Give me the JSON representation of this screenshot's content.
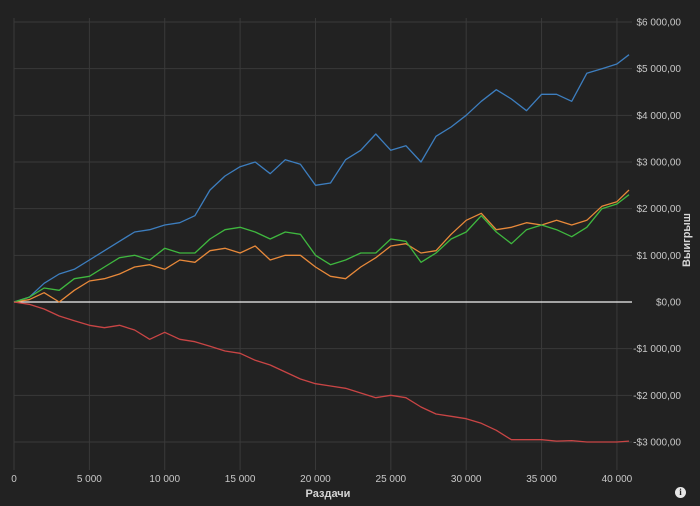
{
  "chart_data": {
    "type": "line",
    "xlabel": "Раздачи",
    "ylabel": "Выигрыш",
    "xlim": [
      0,
      41000
    ],
    "ylim": [
      -3600,
      6000
    ],
    "x_ticks": [
      0,
      5000,
      10000,
      15000,
      20000,
      25000,
      30000,
      35000,
      40000
    ],
    "x_tick_labels": [
      "0",
      "5 000",
      "10 000",
      "15 000",
      "20 000",
      "25 000",
      "30 000",
      "35 000",
      "40 000"
    ],
    "y_ticks": [
      6000,
      5000,
      4000,
      3000,
      2000,
      1000,
      0,
      -1000,
      -2000,
      -3000
    ],
    "y_tick_labels": [
      "$6 000,00",
      "$5 000,00",
      "$4 000,00",
      "$3 000,00",
      "$2 000,00",
      "$1 000,00",
      "$0,00",
      "-$1 000,00",
      "-$2 000,00",
      "-$3 000,00"
    ],
    "grid": true,
    "legend": "none",
    "series": [
      {
        "color": "#3d7ebf",
        "x": [
          0,
          1000,
          2000,
          3000,
          4000,
          5000,
          6000,
          7000,
          8000,
          9000,
          10000,
          11000,
          12000,
          13000,
          14000,
          15000,
          16000,
          17000,
          18000,
          19000,
          20000,
          21000,
          22000,
          23000,
          24000,
          25000,
          26000,
          27000,
          28000,
          29000,
          30000,
          31000,
          32000,
          33000,
          34000,
          35000,
          36000,
          37000,
          38000,
          39000,
          40000,
          40800
        ],
        "values": [
          0,
          100,
          400,
          600,
          700,
          900,
          1100,
          1300,
          1500,
          1550,
          1650,
          1700,
          1850,
          2400,
          2700,
          2900,
          3000,
          2750,
          3050,
          2950,
          2500,
          2550,
          3050,
          3250,
          3600,
          3250,
          3350,
          3000,
          3550,
          3750,
          4000,
          4300,
          4550,
          4350,
          4100,
          4450,
          4450,
          4300,
          4900,
          5000,
          5100,
          5300
        ]
      },
      {
        "color": "#e8893a",
        "x": [
          0,
          1000,
          2000,
          3000,
          4000,
          5000,
          6000,
          7000,
          8000,
          9000,
          10000,
          11000,
          12000,
          13000,
          14000,
          15000,
          16000,
          17000,
          18000,
          19000,
          20000,
          21000,
          22000,
          23000,
          24000,
          25000,
          26000,
          27000,
          28000,
          29000,
          30000,
          31000,
          32000,
          33000,
          34000,
          35000,
          36000,
          37000,
          38000,
          39000,
          40000,
          40800
        ],
        "values": [
          0,
          50,
          200,
          0,
          250,
          450,
          500,
          600,
          750,
          800,
          700,
          900,
          850,
          1100,
          1150,
          1050,
          1200,
          900,
          1000,
          1000,
          750,
          550,
          500,
          750,
          950,
          1200,
          1250,
          1050,
          1100,
          1450,
          1750,
          1900,
          1550,
          1600,
          1700,
          1650,
          1750,
          1650,
          1750,
          2050,
          2150,
          2400
        ]
      },
      {
        "color": "#3fb83f",
        "x": [
          0,
          1000,
          2000,
          3000,
          4000,
          5000,
          6000,
          7000,
          8000,
          9000,
          10000,
          11000,
          12000,
          13000,
          14000,
          15000,
          16000,
          17000,
          18000,
          19000,
          20000,
          21000,
          22000,
          23000,
          24000,
          25000,
          26000,
          27000,
          28000,
          29000,
          30000,
          31000,
          32000,
          33000,
          34000,
          35000,
          36000,
          37000,
          38000,
          39000,
          40000,
          40800
        ],
        "values": [
          0,
          100,
          300,
          250,
          500,
          550,
          750,
          950,
          1000,
          900,
          1150,
          1050,
          1050,
          1350,
          1550,
          1600,
          1500,
          1350,
          1500,
          1450,
          1000,
          800,
          900,
          1050,
          1050,
          1350,
          1300,
          850,
          1050,
          1350,
          1500,
          1850,
          1500,
          1250,
          1550,
          1650,
          1550,
          1400,
          1600,
          2000,
          2100,
          2300
        ]
      },
      {
        "color": "#c94545",
        "x": [
          0,
          1000,
          2000,
          3000,
          4000,
          5000,
          6000,
          7000,
          8000,
          9000,
          10000,
          11000,
          12000,
          13000,
          14000,
          15000,
          16000,
          17000,
          18000,
          19000,
          20000,
          21000,
          22000,
          23000,
          24000,
          25000,
          26000,
          27000,
          28000,
          29000,
          30000,
          31000,
          32000,
          33000,
          34000,
          35000,
          36000,
          37000,
          38000,
          39000,
          40000,
          40800
        ],
        "values": [
          0,
          -50,
          -150,
          -300,
          -400,
          -500,
          -550,
          -500,
          -600,
          -800,
          -650,
          -800,
          -850,
          -950,
          -1050,
          -1100,
          -1250,
          -1350,
          -1500,
          -1650,
          -1750,
          -1800,
          -1850,
          -1950,
          -2050,
          -2000,
          -2050,
          -2250,
          -2400,
          -2450,
          -2500,
          -2600,
          -2750,
          -2950,
          -2950,
          -2950,
          -2980,
          -2970,
          -3000,
          -3000,
          -3000,
          -2980
        ]
      }
    ]
  }
}
